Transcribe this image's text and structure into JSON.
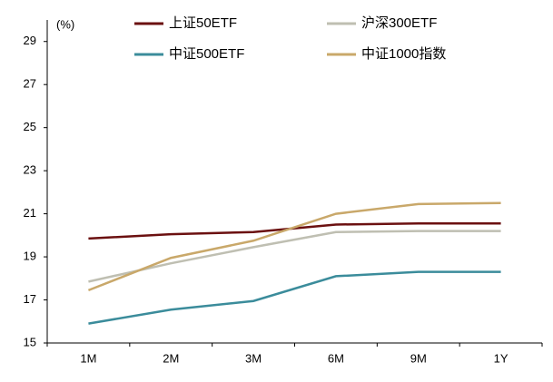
{
  "chart_data": {
    "type": "line",
    "y_label": "(%)",
    "categories": [
      "1M",
      "2M",
      "3M",
      "6M",
      "9M",
      "1Y"
    ],
    "series": [
      {
        "name": "上证50ETF",
        "color": "#6b1010",
        "values": [
          19.85,
          20.05,
          20.15,
          20.5,
          20.55,
          20.55
        ]
      },
      {
        "name": "沪深300ETF",
        "color": "#bfbfb2",
        "values": [
          17.85,
          18.7,
          19.45,
          20.15,
          20.2,
          20.2
        ]
      },
      {
        "name": "中证500ETF",
        "color": "#3b8c9b",
        "values": [
          15.9,
          16.55,
          16.95,
          18.1,
          18.3,
          18.3
        ]
      },
      {
        "name": "中证1000指数",
        "color": "#c9a86a",
        "values": [
          17.45,
          18.95,
          19.75,
          21.0,
          21.45,
          21.5
        ]
      }
    ],
    "ylim": [
      15,
      30
    ],
    "yticks": [
      15,
      17,
      19,
      21,
      23,
      25,
      27,
      29
    ],
    "grid": false
  }
}
